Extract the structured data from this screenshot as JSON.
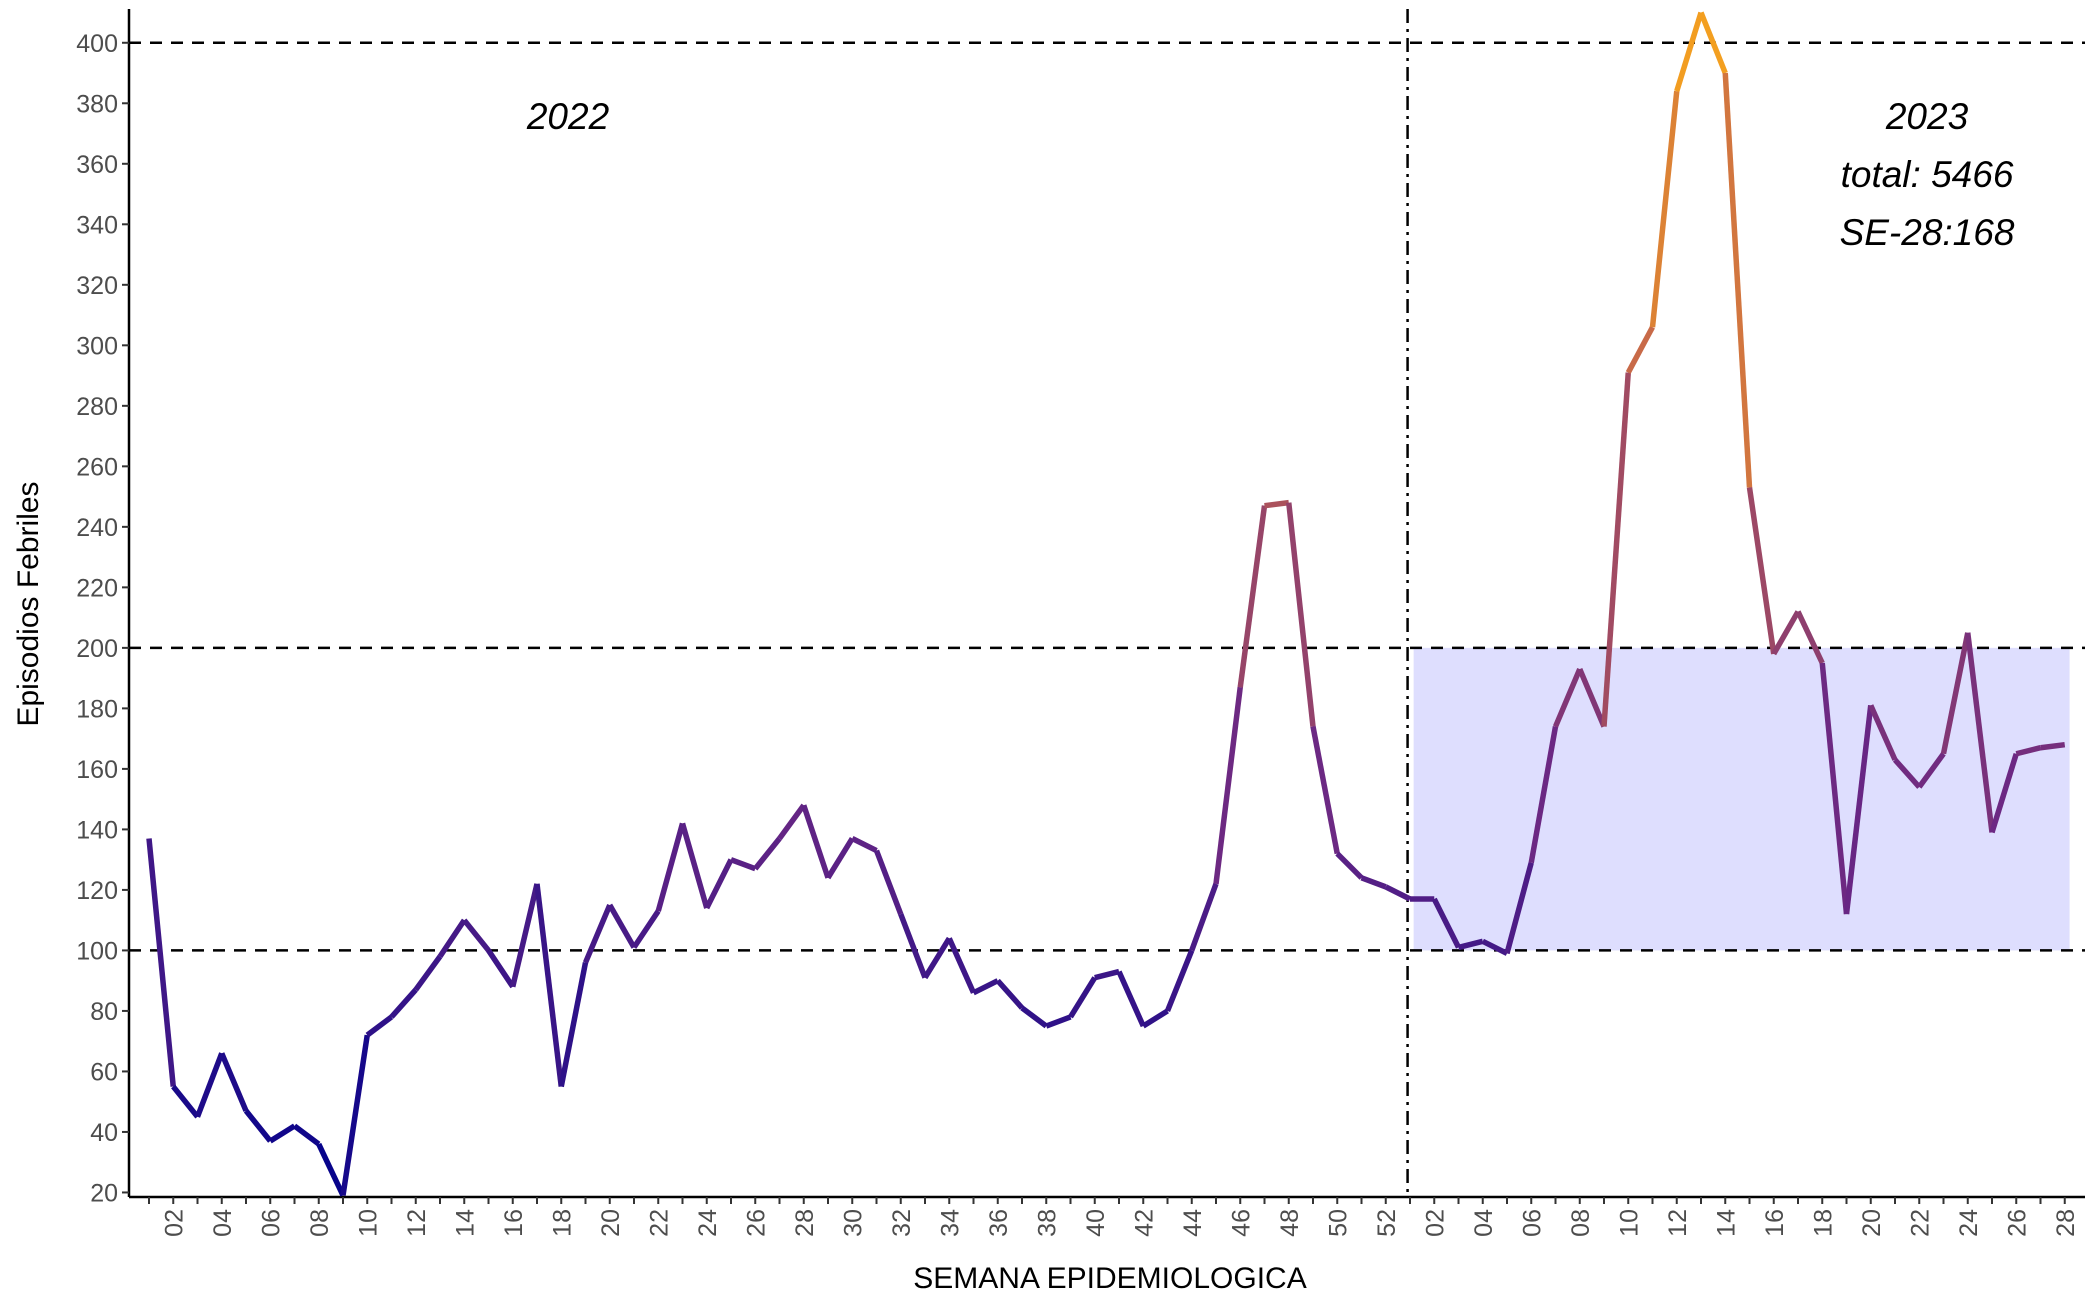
{
  "chart_data": {
    "type": "line",
    "x_title": "SEMANA EPIDEMIOLOGICA",
    "y_title": "Episodios Febriles",
    "annotations": [
      "2022",
      "2023",
      "total: 5466",
      "SE-28:168"
    ],
    "categories": [
      null,
      "02",
      null,
      "04",
      null,
      "06",
      null,
      "08",
      null,
      "10",
      null,
      "12",
      null,
      "14",
      null,
      "16",
      null,
      "18",
      null,
      "20",
      null,
      "22",
      null,
      "24",
      null,
      "26",
      null,
      "28",
      null,
      "30",
      null,
      "32",
      null,
      "34",
      null,
      "36",
      null,
      "38",
      null,
      "40",
      null,
      "42",
      null,
      "44",
      null,
      "46",
      null,
      "48",
      null,
      "50",
      null,
      "52",
      null,
      "02",
      null,
      "04",
      null,
      "06",
      null,
      "08",
      null,
      "10",
      null,
      "12",
      null,
      "14",
      null,
      "16",
      null,
      "18",
      null,
      "20",
      null,
      "22",
      null,
      "24",
      null,
      "26",
      null,
      "28"
    ],
    "values": [
      137,
      55,
      45,
      66,
      47,
      37,
      42,
      36,
      19,
      72,
      78,
      87,
      98,
      110,
      100,
      88,
      122,
      55,
      96,
      115,
      101,
      113,
      142,
      114,
      130,
      127,
      137,
      148,
      124,
      137,
      133,
      112,
      91,
      104,
      86,
      90,
      81,
      75,
      78,
      91,
      93,
      75,
      80,
      100,
      122,
      187,
      247,
      248,
      174,
      132,
      124,
      121,
      117,
      117,
      101,
      103,
      99,
      129,
      174,
      193,
      174,
      291,
      306,
      384,
      410,
      390,
      253,
      198,
      212,
      195,
      112,
      181,
      163,
      154,
      165,
      205,
      139,
      165,
      167,
      168
    ],
    "colors": [
      "#00008b",
      "#6a2784",
      "#c0604f",
      "#f7a41c"
    ],
    "ylim": [
      18.5,
      410.5
    ],
    "yticks": [
      20,
      40,
      60,
      80,
      100,
      120,
      140,
      160,
      180,
      200,
      220,
      240,
      260,
      280,
      300,
      320,
      340,
      360,
      380,
      400
    ],
    "hlines": [
      100,
      200,
      400
    ],
    "shaded_range": [
      100,
      200
    ],
    "shade_color": "#dedefe"
  }
}
